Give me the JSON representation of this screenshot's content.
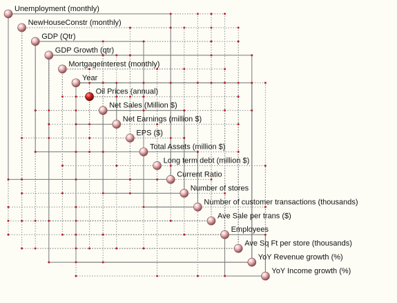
{
  "nodes": [
    {
      "label": "Unemployment (monthly)"
    },
    {
      "label": "NewHouseConstr (monthly)"
    },
    {
      "label": "GDP (Qtr)"
    },
    {
      "label": "GDP Growth (qtr)"
    },
    {
      "label": "MortgageInterest (monthly)"
    },
    {
      "label": "Year"
    },
    {
      "label": "Oil Prices (annual)",
      "highlighted": true
    },
    {
      "label": "Net Sales (Million $)"
    },
    {
      "label": "Net Earnings (million $)"
    },
    {
      "label": "EPS ($)"
    },
    {
      "label": "Total Assets (million $)"
    },
    {
      "label": "Long term debt (million $)"
    },
    {
      "label": "Current Ratio"
    },
    {
      "label": "Number of stores"
    },
    {
      "label": "Number of customer transactions (thousands)"
    },
    {
      "label": "Ave Sale per trans ($)"
    },
    {
      "label": "Employees"
    },
    {
      "label": "Ave Sq Ft per store (thousands)"
    },
    {
      "label": "YoY Revenue growth (%)"
    },
    {
      "label": "YoY Income growth (%)"
    }
  ],
  "links": [
    [
      0,
      14
    ],
    [
      0,
      15
    ],
    [
      0,
      16
    ],
    [
      0,
      12
    ],
    [
      1,
      9
    ],
    [
      1,
      12
    ],
    [
      1,
      13
    ],
    [
      1,
      15
    ],
    [
      1,
      17
    ],
    [
      2,
      7
    ],
    [
      2,
      10
    ],
    [
      2,
      15
    ],
    [
      2,
      17
    ],
    [
      3,
      7
    ],
    [
      3,
      8
    ],
    [
      3,
      9
    ],
    [
      3,
      15
    ],
    [
      3,
      18
    ],
    [
      4,
      6
    ],
    [
      4,
      11
    ],
    [
      4,
      13
    ],
    [
      4,
      16
    ],
    [
      5,
      6
    ],
    [
      5,
      7
    ],
    [
      5,
      8
    ],
    [
      5,
      10
    ],
    [
      5,
      12
    ],
    [
      5,
      14
    ],
    [
      5,
      15
    ],
    [
      5,
      16
    ],
    [
      5,
      17
    ],
    [
      5,
      18
    ],
    [
      5,
      19
    ],
    [
      6,
      8
    ],
    [
      6,
      9
    ],
    [
      6,
      10
    ],
    [
      6,
      17
    ],
    [
      7,
      10
    ],
    [
      7,
      13
    ],
    [
      7,
      16
    ],
    [
      7,
      18
    ],
    [
      8,
      11
    ],
    [
      8,
      17
    ],
    [
      9,
      12
    ],
    [
      9,
      13
    ],
    [
      10,
      14
    ],
    [
      10,
      17
    ],
    [
      11,
      12
    ],
    [
      11,
      19
    ],
    [
      12,
      15
    ],
    [
      13,
      16
    ],
    [
      14,
      19
    ],
    [
      16,
      19
    ]
  ],
  "colors": {
    "background": "#fdfdf6",
    "node": "#d69a9c",
    "node_highlight": "#cc2a2a",
    "connector": "#8a8a8a",
    "dot": "#b8202a"
  }
}
